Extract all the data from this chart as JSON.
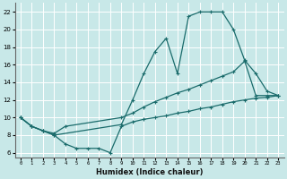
{
  "xlabel": "Humidex (Indice chaleur)",
  "bg_color": "#c8e8e8",
  "grid_color": "#ffffff",
  "line_color": "#1a6b6b",
  "xlim": [
    -0.5,
    23.5
  ],
  "ylim": [
    5.5,
    23
  ],
  "xticks": [
    0,
    1,
    2,
    3,
    4,
    5,
    6,
    7,
    8,
    9,
    10,
    11,
    12,
    13,
    14,
    15,
    16,
    17,
    18,
    19,
    20,
    21,
    22,
    23
  ],
  "yticks": [
    6,
    8,
    10,
    12,
    14,
    16,
    18,
    20,
    22
  ],
  "curve_top_x": [
    0,
    1,
    2,
    3,
    9,
    10,
    11,
    12,
    13,
    14,
    15,
    16,
    17,
    18,
    19,
    20,
    21,
    22,
    23
  ],
  "curve_top_y": [
    10,
    9,
    8.5,
    8,
    9.2,
    12,
    15,
    17.5,
    19,
    15,
    21.5,
    22,
    22,
    22,
    20,
    16.5,
    15,
    13,
    12.5
  ],
  "curve_mid_x": [
    0,
    1,
    2,
    3,
    4,
    9,
    10,
    11,
    12,
    13,
    14,
    15,
    16,
    17,
    18,
    19,
    20,
    21,
    22,
    23
  ],
  "curve_mid_y": [
    10,
    9,
    8.5,
    8.2,
    9.0,
    10,
    10.5,
    11.2,
    11.8,
    12.3,
    12.8,
    13.2,
    13.7,
    14.2,
    14.7,
    15.2,
    16.4,
    12.5,
    12.5,
    12.5
  ],
  "curve_bot_x": [
    0,
    1,
    2,
    3,
    4,
    5,
    6,
    7,
    8,
    9,
    10,
    11,
    12,
    13,
    14,
    15,
    16,
    17,
    18,
    19,
    20,
    21,
    22,
    23
  ],
  "curve_bot_y": [
    10,
    9,
    8.5,
    8,
    7,
    6.5,
    6.5,
    6.5,
    6.0,
    9.0,
    9.5,
    9.8,
    10.0,
    10.2,
    10.5,
    10.7,
    11.0,
    11.2,
    11.5,
    11.8,
    12.0,
    12.2,
    12.3,
    12.5
  ]
}
